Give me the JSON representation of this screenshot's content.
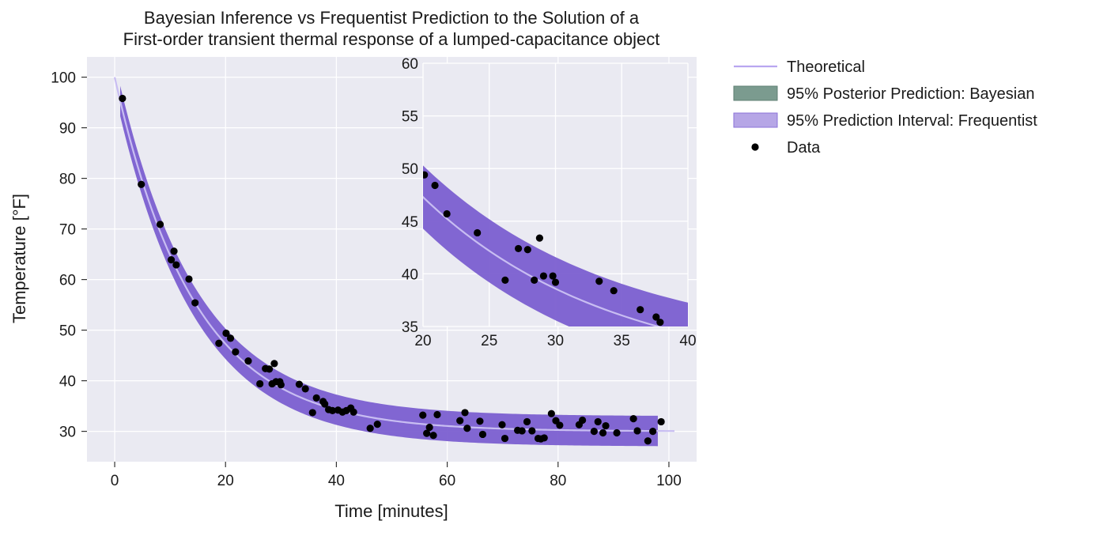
{
  "chart_data": {
    "type": "scatter",
    "title_line1": "Bayesian Inference vs Frequentist Prediction to the Solution of a",
    "title_line2": "First-order transient thermal response of a lumped-capacitance object",
    "xlabel": "Time [minutes]",
    "ylabel": "Temperature [°F]",
    "xlim": [
      -5,
      105
    ],
    "ylim": [
      24,
      104
    ],
    "xticks": [
      0,
      20,
      40,
      60,
      80,
      100
    ],
    "yticks": [
      30,
      40,
      50,
      60,
      70,
      80,
      90,
      100
    ],
    "inset": {
      "xlim": [
        20,
        40
      ],
      "ylim": [
        35,
        60
      ],
      "xticks": [
        20,
        25,
        30,
        35,
        40
      ],
      "yticks": [
        35,
        40,
        45,
        50,
        55,
        60
      ]
    },
    "grid": true,
    "legend_position": "outside-right",
    "legend": [
      {
        "label": "Theoretical",
        "kind": "line",
        "color": "#b9a6f0"
      },
      {
        "label": "95% Posterior Prediction: Bayesian",
        "kind": "patch",
        "color": "#7b9b8f"
      },
      {
        "label": "95% Prediction Interval: Frequentist",
        "kind": "patch",
        "color": "#b6a6e6"
      },
      {
        "label": "Data",
        "kind": "marker",
        "color": "#000000"
      }
    ],
    "model": {
      "T_inf": 30,
      "T0": 100,
      "tau": 14.3
    },
    "band_halfwidth": 3.0,
    "band_x_range": [
      1,
      98
    ],
    "theory_x_range": [
      0,
      101
    ],
    "series": [
      {
        "name": "Data",
        "x": [
          1.4,
          4.8,
          8.2,
          10.2,
          10.7,
          11.1,
          13.4,
          14.5,
          18.8,
          20.1,
          20.9,
          21.8,
          24.1,
          26.2,
          27.2,
          27.9,
          28.4,
          28.8,
          29.1,
          29.8,
          30.0,
          33.3,
          34.4,
          35.7,
          36.4,
          37.6,
          37.9,
          38.6,
          39.3,
          40.3,
          41.1,
          41.8,
          42.6,
          43.1,
          46.1,
          47.4,
          55.6,
          56.3,
          56.8,
          57.5,
          58.2,
          62.3,
          63.2,
          63.6,
          65.9,
          66.4,
          69.9,
          70.4,
          72.7,
          73.5,
          74.4,
          75.3,
          76.4,
          76.9,
          77.5,
          78.8,
          79.6,
          80.3,
          83.8,
          84.4,
          86.5,
          87.2,
          88.1,
          88.6,
          90.6,
          93.6,
          94.3,
          96.2,
          97.1,
          98.6
        ],
        "y": [
          95.8,
          78.8,
          70.9,
          63.9,
          65.6,
          62.9,
          60.1,
          55.4,
          47.4,
          49.4,
          48.4,
          45.7,
          43.9,
          39.4,
          42.4,
          42.3,
          39.4,
          43.4,
          39.8,
          39.8,
          39.2,
          39.3,
          38.4,
          33.7,
          36.6,
          35.9,
          35.4,
          34.3,
          34.1,
          34.2,
          33.8,
          34.1,
          34.6,
          33.8,
          30.6,
          31.4,
          33.2,
          29.6,
          30.8,
          29.2,
          33.3,
          32.1,
          33.7,
          30.6,
          32.0,
          29.4,
          31.3,
          28.6,
          30.2,
          30.1,
          31.9,
          30.1,
          28.6,
          28.5,
          28.7,
          33.5,
          32.1,
          31.2,
          31.3,
          32.2,
          30.0,
          31.9,
          29.7,
          31.1,
          29.7,
          32.5,
          30.1,
          28.1,
          30.0,
          31.9
        ]
      }
    ]
  }
}
